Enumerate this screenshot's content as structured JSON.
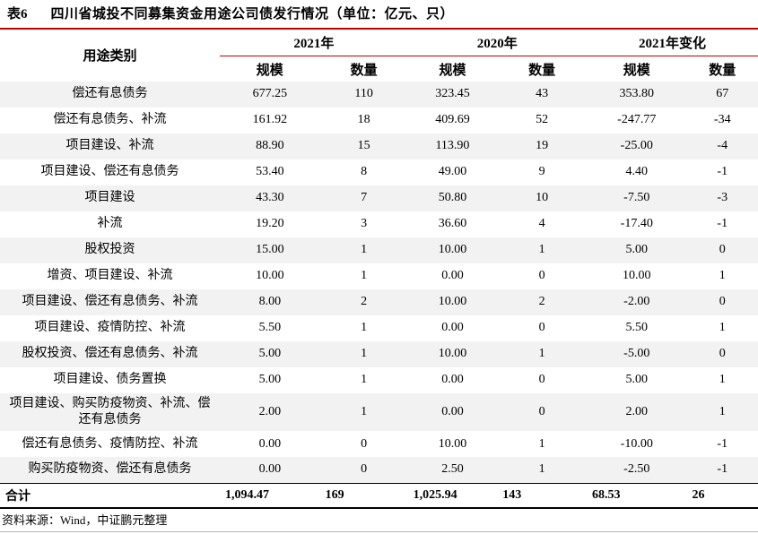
{
  "title": {
    "tag": "表6",
    "text": "四川省城投不同募集资金用途公司债发行情况（单位：亿元、只）"
  },
  "table": {
    "category_header": "用途类别",
    "group_headers": [
      "2021年",
      "2020年",
      "2021年变化"
    ],
    "sub_headers": [
      "规模",
      "数量",
      "规模",
      "数量",
      "规模",
      "数量"
    ],
    "rows": [
      {
        "category": "偿还有息债务",
        "values": [
          "677.25",
          "110",
          "323.45",
          "43",
          "353.80",
          "67"
        ]
      },
      {
        "category": "偿还有息债务、补流",
        "values": [
          "161.92",
          "18",
          "409.69",
          "52",
          "-247.77",
          "-34"
        ]
      },
      {
        "category": "项目建设、补流",
        "values": [
          "88.90",
          "15",
          "113.90",
          "19",
          "-25.00",
          "-4"
        ]
      },
      {
        "category": "项目建设、偿还有息债务",
        "values": [
          "53.40",
          "8",
          "49.00",
          "9",
          "4.40",
          "-1"
        ]
      },
      {
        "category": "项目建设",
        "values": [
          "43.30",
          "7",
          "50.80",
          "10",
          "-7.50",
          "-3"
        ]
      },
      {
        "category": "补流",
        "values": [
          "19.20",
          "3",
          "36.60",
          "4",
          "-17.40",
          "-1"
        ]
      },
      {
        "category": "股权投资",
        "values": [
          "15.00",
          "1",
          "10.00",
          "1",
          "5.00",
          "0"
        ]
      },
      {
        "category": "增资、项目建设、补流",
        "values": [
          "10.00",
          "1",
          "0.00",
          "0",
          "10.00",
          "1"
        ]
      },
      {
        "category": "项目建设、偿还有息债务、补流",
        "values": [
          "8.00",
          "2",
          "10.00",
          "2",
          "-2.00",
          "0"
        ]
      },
      {
        "category": "项目建设、疫情防控、补流",
        "values": [
          "5.50",
          "1",
          "0.00",
          "0",
          "5.50",
          "1"
        ]
      },
      {
        "category": "股权投资、偿还有息债务、补流",
        "values": [
          "5.00",
          "1",
          "10.00",
          "1",
          "-5.00",
          "0"
        ]
      },
      {
        "category": "项目建设、债务置换",
        "values": [
          "5.00",
          "1",
          "0.00",
          "0",
          "5.00",
          "1"
        ]
      },
      {
        "category": "项目建设、购买防疫物资、补流、偿还有息债务",
        "values": [
          "2.00",
          "1",
          "0.00",
          "0",
          "2.00",
          "1"
        ]
      },
      {
        "category": "偿还有息债务、疫情防控、补流",
        "values": [
          "0.00",
          "0",
          "10.00",
          "1",
          "-10.00",
          "-1"
        ]
      },
      {
        "category": "购买防疫物资、偿还有息债务",
        "values": [
          "0.00",
          "0",
          "2.50",
          "1",
          "-2.50",
          "-1"
        ]
      }
    ],
    "total_row": {
      "category": "合计",
      "values": [
        "1,094.47",
        "169",
        "1,025.94",
        "143",
        "68.53",
        "26"
      ]
    }
  },
  "footer": {
    "source": "资料来源：Wind，中证鹏元整理"
  },
  "colors": {
    "accent_red": "#C00000",
    "stripe_gray": "#F2F2F2",
    "text": "#000000"
  }
}
